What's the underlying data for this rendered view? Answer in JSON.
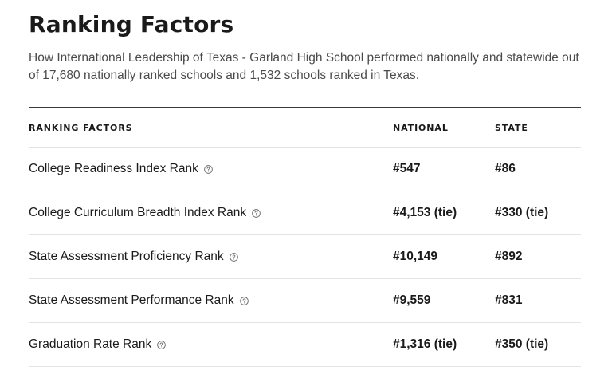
{
  "header": {
    "title": "Ranking Factors",
    "subtitle": "How International Leadership of Texas - Garland High School performed nationally and statewide out of 17,680 nationally ranked schools and 1,532 schools ranked in Texas."
  },
  "table": {
    "columns": [
      "RANKING FACTORS",
      "NATIONAL",
      "STATE"
    ],
    "rows": [
      {
        "factor": "College Readiness Index Rank",
        "national": "#547",
        "state": "#86"
      },
      {
        "factor": "College Curriculum Breadth Index Rank",
        "national": "#4,153 (tie)",
        "state": "#330 (tie)"
      },
      {
        "factor": "State Assessment Proficiency Rank",
        "national": "#10,149",
        "state": "#892"
      },
      {
        "factor": "State Assessment Performance Rank",
        "national": "#9,559",
        "state": "#831"
      },
      {
        "factor": "Graduation Rate Rank",
        "national": "#1,316 (tie)",
        "state": "#350 (tie)"
      }
    ],
    "info_icon": "question-circle-icon"
  },
  "colors": {
    "text": "#1a1a1a",
    "subtext": "#4a4a4a",
    "rule": "#3a3a3a",
    "divider": "#e3e3e3"
  }
}
